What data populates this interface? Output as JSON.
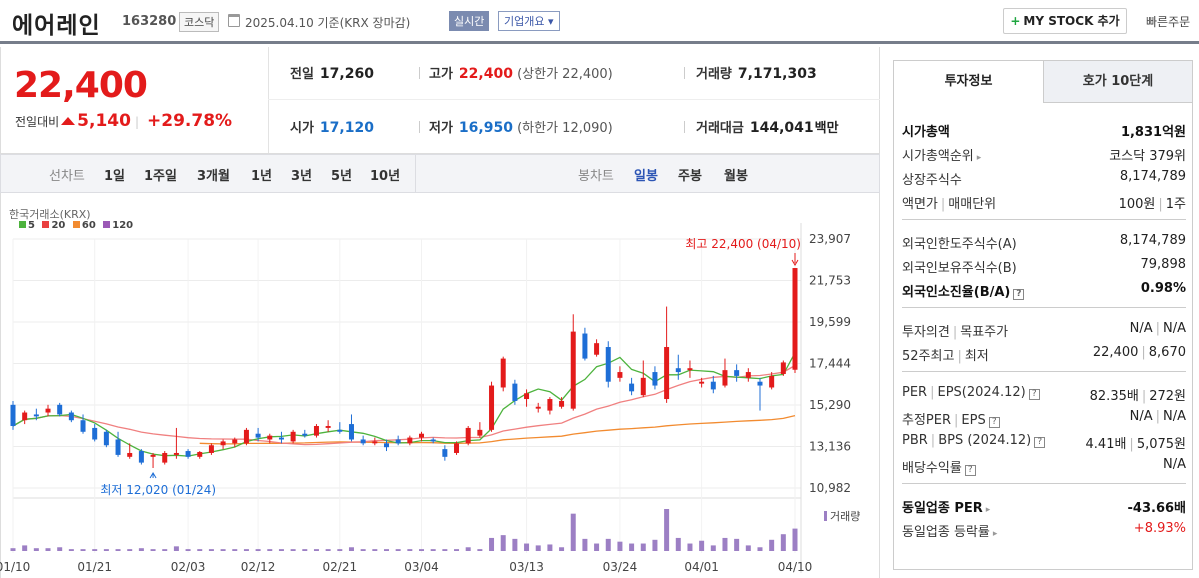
{
  "header": {
    "name": "에어레인",
    "code": "163280",
    "market": "코스닥",
    "date": "2025.04.10 기준(KRX 장마감)",
    "realtime": "실시간",
    "corp_info": "기업개요 ▾",
    "mystock": "MY STOCK 추가",
    "quick_order": "빠른주문"
  },
  "summary": {
    "price": "22,400",
    "change_label": "전일대비",
    "change_value": "5,140",
    "change_pct": "+29.78%",
    "prev_close_label": "전일",
    "prev_close": "17,260",
    "high_label": "고가",
    "high": "22,400",
    "upper_limit": "(상한가 22,400)",
    "volume_label": "거래량",
    "volume": "7,171,303",
    "open_label": "시가",
    "open": "17,120",
    "low_label": "저가",
    "low": "16,950",
    "lower_limit": "(하한가 12,090)",
    "amount_label": "거래대금",
    "amount": "144,041",
    "amount_unit": "백만"
  },
  "period_bar": {
    "line_label": "선차트",
    "line_periods": [
      "1일",
      "1주일",
      "3개월",
      "1년",
      "3년",
      "5년",
      "10년"
    ],
    "candle_label": "봉차트",
    "candle_periods": [
      "일봉",
      "주봉",
      "월봉"
    ],
    "active_candle": "일봉"
  },
  "chart_legend": {
    "source": "한국거래소(KRX)",
    "ma": [
      {
        "label": "5",
        "color": "#4db33d"
      },
      {
        "label": "20",
        "color": "#e94040"
      },
      {
        "label": "60",
        "color": "#f28b30"
      },
      {
        "label": "120",
        "color": "#9b59b6"
      }
    ]
  },
  "chart_data": {
    "type": "candlestick",
    "y_ticks": [
      "23,907",
      "21,753",
      "19,599",
      "17,444",
      "15,290",
      "13,136",
      "10,982"
    ],
    "ylim": [
      10982,
      23907
    ],
    "x_ticks": [
      "01/10",
      "01/21",
      "02/03",
      "02/12",
      "02/21",
      "03/04",
      "03/13",
      "03/24",
      "04/01",
      "04/10"
    ],
    "high_note": "최고 22,400 (04/10)",
    "low_note": "최저 12,020 (01/24)",
    "volume_label": "거래량",
    "candles": [
      [
        15300,
        15500,
        14000,
        14200
      ],
      [
        14500,
        15000,
        14300,
        14900
      ],
      [
        14800,
        15100,
        14500,
        14700
      ],
      [
        14900,
        15300,
        14700,
        15100
      ],
      [
        15300,
        15400,
        14700,
        14800
      ],
      [
        14900,
        15000,
        14400,
        14500
      ],
      [
        14500,
        14800,
        13800,
        13900
      ],
      [
        14100,
        14300,
        13400,
        13500
      ],
      [
        13900,
        14000,
        13100,
        13200
      ],
      [
        13500,
        13900,
        12600,
        12700
      ],
      [
        12600,
        13300,
        12500,
        12800
      ],
      [
        12900,
        13000,
        12200,
        12300
      ],
      [
        12600,
        12800,
        12020,
        12700
      ],
      [
        12300,
        12900,
        12200,
        12800
      ],
      [
        12700,
        14100,
        12500,
        12800
      ],
      [
        12900,
        13000,
        12500,
        12600
      ],
      [
        12600,
        12900,
        12500,
        12850
      ],
      [
        12800,
        13300,
        12700,
        13200
      ],
      [
        13200,
        13500,
        13000,
        13400
      ],
      [
        13300,
        13600,
        13100,
        13500
      ],
      [
        13300,
        14100,
        13200,
        14000
      ],
      [
        13800,
        14100,
        13400,
        13600
      ],
      [
        13500,
        13800,
        13300,
        13700
      ],
      [
        13600,
        13900,
        13300,
        13500
      ],
      [
        13400,
        14000,
        13300,
        13900
      ],
      [
        13800,
        14000,
        13600,
        13700
      ],
      [
        13700,
        14300,
        13600,
        14200
      ],
      [
        14100,
        14500,
        13900,
        14200
      ],
      [
        14000,
        14400,
        13800,
        13900
      ],
      [
        14300,
        14800,
        13400,
        13500
      ],
      [
        13500,
        13700,
        13200,
        13300
      ],
      [
        13300,
        13600,
        13200,
        13400
      ],
      [
        13300,
        13500,
        12900,
        13100
      ],
      [
        13500,
        13700,
        13200,
        13300
      ],
      [
        13300,
        13700,
        13200,
        13600
      ],
      [
        13600,
        13900,
        13400,
        13800
      ],
      [
        13500,
        13600,
        13300,
        13400
      ],
      [
        13000,
        13200,
        12400,
        12600
      ],
      [
        12800,
        13400,
        12700,
        13300
      ],
      [
        13300,
        14200,
        13200,
        14100
      ],
      [
        13700,
        14400,
        13600,
        14000
      ],
      [
        14000,
        16500,
        13900,
        16300
      ],
      [
        16200,
        17800,
        16000,
        17700
      ],
      [
        16400,
        16600,
        15300,
        15500
      ],
      [
        15600,
        16100,
        15200,
        15900
      ],
      [
        15100,
        15400,
        14900,
        15200
      ],
      [
        15000,
        15700,
        14800,
        15600
      ],
      [
        15200,
        15700,
        15100,
        15500
      ],
      [
        15100,
        20000,
        15000,
        19100
      ],
      [
        19000,
        19300,
        17600,
        17700
      ],
      [
        17900,
        18700,
        17800,
        18500
      ],
      [
        18300,
        18600,
        16200,
        16500
      ],
      [
        16700,
        17300,
        16500,
        17000
      ],
      [
        16400,
        16700,
        15800,
        16000
      ],
      [
        15800,
        17600,
        15700,
        16700
      ],
      [
        17000,
        17300,
        16100,
        16300
      ],
      [
        15600,
        20400,
        15400,
        18300
      ],
      [
        17200,
        17900,
        16600,
        17000
      ],
      [
        17100,
        17600,
        16700,
        17200
      ],
      [
        16400,
        16700,
        16200,
        16500
      ],
      [
        16500,
        16800,
        15900,
        16100
      ],
      [
        16300,
        17700,
        16200,
        17100
      ],
      [
        17100,
        17400,
        16500,
        16800
      ],
      [
        16700,
        17200,
        16500,
        17000
      ],
      [
        16500,
        16700,
        15000,
        16300
      ],
      [
        16200,
        17000,
        16100,
        16800
      ],
      [
        16900,
        17600,
        16800,
        17500
      ],
      [
        17120,
        22400,
        16950,
        22400
      ]
    ],
    "volumes": [
      3,
      6,
      3,
      3,
      4,
      2,
      2,
      2,
      2,
      2,
      2,
      3,
      2,
      2,
      5,
      2,
      2,
      2,
      2,
      2,
      2,
      2,
      2,
      2,
      2,
      2,
      2,
      2,
      2,
      4,
      2,
      2,
      2,
      2,
      2,
      2,
      2,
      2,
      2,
      4,
      2,
      14,
      17,
      13,
      8,
      6,
      7,
      4,
      40,
      13,
      8,
      13,
      10,
      8,
      8,
      12,
      45,
      14,
      8,
      11,
      6,
      14,
      13,
      6,
      4,
      12,
      18,
      24
    ]
  },
  "invest": {
    "tab_active": "투자정보",
    "tab_other": "호가 10단계",
    "rows": [
      {
        "k": "시가총액",
        "v": "1,831억원",
        "bold": true
      },
      {
        "k": "시가총액순위",
        "v": "코스닥 379위",
        "car": true
      },
      {
        "k": "상장주식수",
        "v": "8,174,789"
      },
      {
        "k": "액면가 | 매매단위",
        "v": "100원 | 1주"
      },
      {
        "k": "외국인한도주식수(A)",
        "v": "8,174,789"
      },
      {
        "k": "외국인보유주식수(B)",
        "v": "79,898"
      },
      {
        "k": "외국인소진율(B/A)",
        "v": "0.98%",
        "bold": true,
        "qm": true
      },
      {
        "k": "투자의견 | 목표주가",
        "v": "N/A | N/A"
      },
      {
        "k": "52주최고 | 최저",
        "v": "22,400 | 8,670"
      },
      {
        "k": "PER | EPS(2024.12)",
        "v": "82.35배 | 272원",
        "qm": true
      },
      {
        "k": "추정PER | EPS",
        "v": "N/A | N/A",
        "qm": true
      },
      {
        "k": "PBR | BPS (2024.12)",
        "v": "4.41배 | 5,075원",
        "qm": true
      },
      {
        "k": "배당수익률",
        "v": "N/A",
        "qm": true
      },
      {
        "k": "동일업종 PER",
        "v": "-43.66배",
        "bold": true,
        "car": true
      },
      {
        "k": "동일업종 등락률",
        "v": "+8.93%",
        "car": true,
        "red": true
      }
    ]
  }
}
